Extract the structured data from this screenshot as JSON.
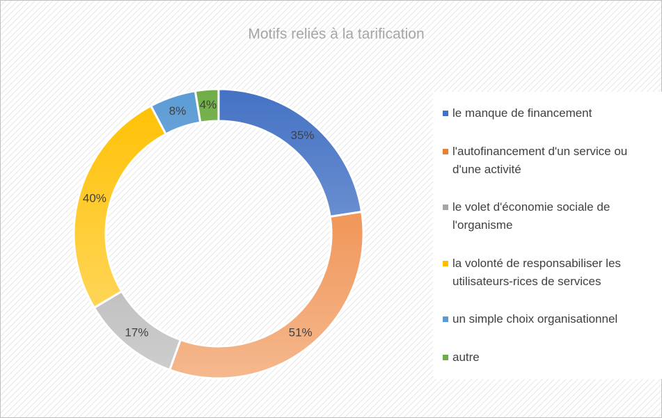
{
  "chart_data": {
    "type": "donut",
    "title": "Motifs reliés à la tarification",
    "categories": [
      "le manque de financement",
      "l'autofinancement d'un service ou d'une activité",
      "le volet d'économie sociale de l'organisme",
      "la volonté de responsabiliser les utilisateurs-rices de services",
      "un simple choix organisationnel",
      "autre"
    ],
    "values": [
      35,
      51,
      17,
      40,
      8,
      4
    ],
    "value_labels": [
      "35%",
      "51%",
      "17%",
      "40%",
      "8%",
      "4%"
    ],
    "colors": [
      "#4472c4",
      "#ed7d31",
      "#a5a5a5",
      "#ffc000",
      "#5b9bd5",
      "#70ad47"
    ],
    "legend": "right"
  }
}
